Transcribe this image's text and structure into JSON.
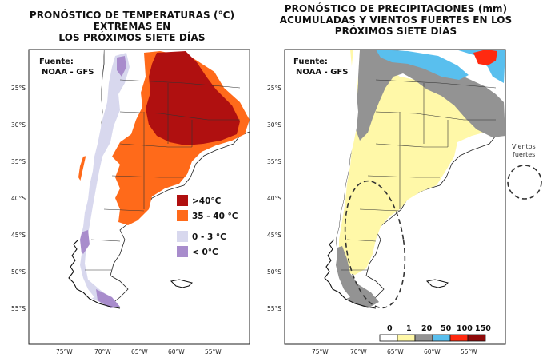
{
  "left_map": {
    "title_line1": "PRONÓSTICO DE TEMPERATURAS (°C) EXTREMAS EN",
    "title_line2": "LOS PRÓXIMOS SIETE DÍAS",
    "source_line1": "Fuente:",
    "source_line2": "NOAA - GFS",
    "legend": [
      {
        "label": ">40°C",
        "color": "#b01010"
      },
      {
        "label": "35 - 40 °C",
        "color": "#ff6a1a"
      },
      {
        "label": "0 - 3 °C",
        "color": "#d8d8ee"
      },
      {
        "label": "< 0°C",
        "color": "#a88ccc"
      }
    ]
  },
  "right_map": {
    "title_line1": "PRONÓSTICO DE PRECIPITACIONES (mm)",
    "title_line2": "ACUMULADAS Y VIENTOS FUERTES EN LOS",
    "title_line3": "PRÓXIMOS SIETE DÍAS",
    "source_line1": "Fuente:",
    "source_line2": "NOAA - GFS",
    "colorbar": {
      "ticks": [
        "0",
        "1",
        "20",
        "50",
        "100",
        "150"
      ],
      "colors": [
        "#ffffff",
        "#fff8a8",
        "#939393",
        "#59bfee",
        "#ff2a10",
        "#8e0a0a"
      ]
    }
  },
  "side_legend": {
    "line1": "Vientos",
    "line2": "fuertes"
  },
  "axes": {
    "lat_labels": [
      "25°S",
      "30°S",
      "35°S",
      "40°S",
      "45°S",
      "50°S",
      "55°S"
    ],
    "lon_labels": [
      "75°W",
      "70°W",
      "65°W",
      "60°W",
      "55°W"
    ]
  }
}
